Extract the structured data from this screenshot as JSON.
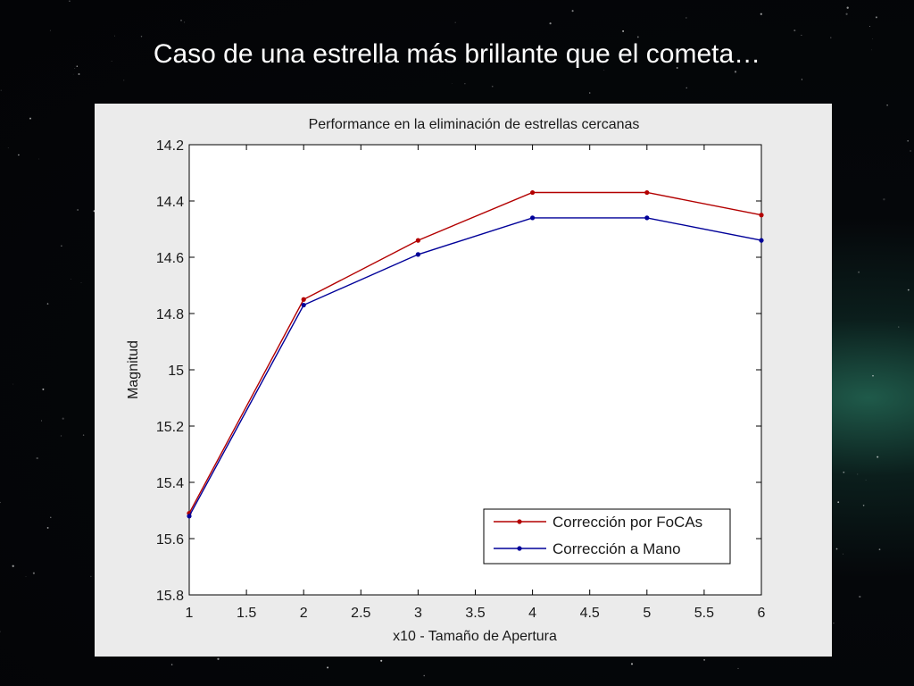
{
  "slide": {
    "title": "Caso de una estrella más brillante que el cometa…"
  },
  "chart_data": {
    "type": "line",
    "title": "Performance en la eliminación de estrellas cercanas",
    "xlabel": "x10 - Tamaño de Apertura",
    "ylabel": "Magnitud",
    "x": [
      1,
      2,
      3,
      4,
      5,
      6
    ],
    "xlim": [
      1,
      6
    ],
    "ylim": [
      14.2,
      15.8
    ],
    "y_reversed": true,
    "xticks": [
      "1",
      "1.5",
      "2",
      "2.5",
      "3",
      "3.5",
      "4",
      "4.5",
      "5",
      "5.5",
      "6"
    ],
    "yticks": [
      "14.2",
      "14.4",
      "14.6",
      "14.8",
      "15",
      "15.2",
      "15.4",
      "15.6",
      "15.8"
    ],
    "grid": false,
    "legend_position": "bottom-right",
    "series": [
      {
        "name": "Corrección por FoCAs",
        "color": "#b30000",
        "values": [
          15.51,
          14.75,
          14.54,
          14.37,
          14.37,
          14.45
        ]
      },
      {
        "name": "Corrección a Mano",
        "color": "#000099",
        "values": [
          15.52,
          14.77,
          14.59,
          14.46,
          14.46,
          14.54
        ]
      }
    ]
  }
}
